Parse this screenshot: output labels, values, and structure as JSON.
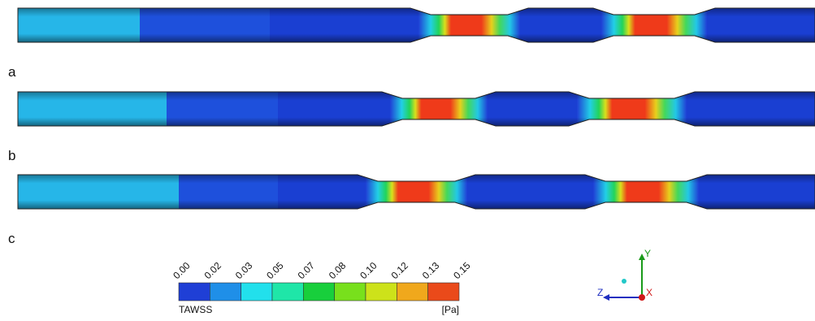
{
  "panels": [
    {
      "label": "a"
    },
    {
      "label": "b"
    },
    {
      "label": "c"
    }
  ],
  "colorbar": {
    "ticks": [
      "0.00",
      "0.02",
      "0.03",
      "0.05",
      "0.07",
      "0.08",
      "0.10",
      "0.12",
      "0.13",
      "0.15"
    ],
    "title": "TAWSS",
    "unit": "[Pa]"
  },
  "triad": {
    "x": "X",
    "y": "Y",
    "z": "Z"
  }
}
